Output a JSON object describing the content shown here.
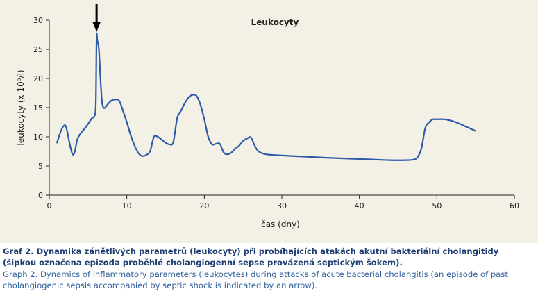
{
  "chart_data": {
    "type": "line",
    "title": "Leukocyty",
    "xlabel": "čas (dny)",
    "ylabel": "leukocyty (x 10⁹/l)",
    "xlim": [
      0,
      60
    ],
    "ylim": [
      0,
      30
    ],
    "xticks": [
      0,
      10,
      20,
      30,
      40,
      50,
      60
    ],
    "yticks": [
      0,
      5,
      10,
      15,
      20,
      25,
      30
    ],
    "grid": false,
    "series": [
      {
        "color": "#2d5aa8",
        "x": [
          1,
          1.5,
          2,
          2.3,
          2.6,
          3,
          3.3,
          3.6,
          4,
          4.5,
          5,
          5.5,
          5.8,
          6,
          6.1,
          6.2,
          6.4,
          6.6,
          6.8,
          7,
          7.2,
          7.5,
          8,
          8.5,
          9,
          9.5,
          10,
          10.5,
          11,
          11.5,
          12,
          12.5,
          13,
          13.5,
          14,
          14.5,
          15,
          15.5,
          16,
          16.5,
          17,
          17.5,
          18,
          18.5,
          19,
          19.5,
          20,
          20.5,
          21,
          21.5,
          22,
          22.5,
          23,
          23.5,
          24,
          24.5,
          25,
          25.5,
          26,
          26.5,
          27,
          28,
          30,
          33,
          36,
          40,
          42,
          44,
          46,
          47,
          47.5,
          48,
          48.5,
          49,
          49.5,
          50,
          51,
          52,
          53,
          54,
          55
        ],
        "y": [
          9,
          11,
          12,
          11,
          9,
          7,
          7.5,
          9.5,
          10.5,
          11.3,
          12.2,
          13.2,
          13.5,
          15.5,
          27,
          26.5,
          25,
          20,
          16,
          15,
          15,
          15.5,
          16.2,
          16.4,
          16.2,
          14.5,
          12.5,
          10.3,
          8.5,
          7.2,
          6.7,
          6.9,
          7.5,
          10,
          10,
          9.5,
          9,
          8.7,
          9.1,
          13.2,
          14.5,
          15.8,
          16.8,
          17.2,
          17,
          15.5,
          13,
          10,
          8.7,
          8.8,
          8.8,
          7.3,
          7,
          7.3,
          8,
          8.5,
          9.3,
          9.7,
          9.9,
          8.5,
          7.5,
          7,
          6.8,
          6.6,
          6.4,
          6.2,
          6.1,
          6,
          6,
          6.1,
          6.5,
          8,
          11.5,
          12.5,
          13,
          13,
          13,
          12.7,
          12.2,
          11.6,
          11
        ]
      }
    ],
    "annotation": {
      "type": "arrow",
      "x": 6.1,
      "note": "epizoda cholangiogenní sepse"
    }
  },
  "caption": {
    "czech": "Graf 2. Dynamika zánětlivých parametrů (leukocyty) při probíhajících atakách akutní bakteriální cholangitidy (šipkou označena epizoda proběhlé cholangiogenní sepse provázená septickým šokem).",
    "english": "Graph 2. Dynamics of inflammatory parameters (leukocytes) during attacks of acute bacterial cholangitis (an episode of past cholangiogenic sepsis accompanied by septic shock is indicated by an arrow)."
  }
}
